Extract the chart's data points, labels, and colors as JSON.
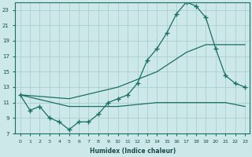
{
  "xlabel": "Humidex (Indice chaleur)",
  "ylabel": "",
  "bg_color": "#cce8e8",
  "line_color": "#1a6e62",
  "grid_color": "#aacfcf",
  "xlim": [
    -0.5,
    23.5
  ],
  "ylim": [
    7,
    24
  ],
  "yticks": [
    7,
    9,
    11,
    13,
    15,
    17,
    19,
    21,
    23
  ],
  "xticks": [
    0,
    1,
    2,
    3,
    4,
    5,
    6,
    7,
    8,
    9,
    10,
    11,
    12,
    13,
    14,
    15,
    16,
    17,
    18,
    19,
    20,
    21,
    22,
    23
  ],
  "line1_x": [
    0,
    1,
    2,
    3,
    4,
    5,
    6,
    7,
    8,
    9,
    10,
    11,
    12,
    13,
    14,
    15,
    16,
    17,
    18,
    19,
    20,
    21,
    22,
    23
  ],
  "line1_y": [
    12,
    10,
    10.5,
    9,
    8.5,
    7.5,
    8.5,
    8.5,
    9.5,
    11,
    11.5,
    12,
    13.5,
    16.5,
    18,
    20,
    22.5,
    24,
    23.5,
    22,
    18,
    14.5,
    13.5,
    13
  ],
  "line2_x": [
    0,
    5,
    10,
    14,
    17,
    19,
    20,
    21,
    23
  ],
  "line2_y": [
    12,
    11.5,
    13,
    15,
    17.5,
    18.5,
    18.5,
    18.5,
    18.5
  ],
  "line3_x": [
    0,
    5,
    10,
    14,
    17,
    19,
    20,
    21,
    23
  ],
  "line3_y": [
    12,
    10.5,
    10.5,
    11,
    11,
    11,
    11,
    11,
    10.5
  ]
}
